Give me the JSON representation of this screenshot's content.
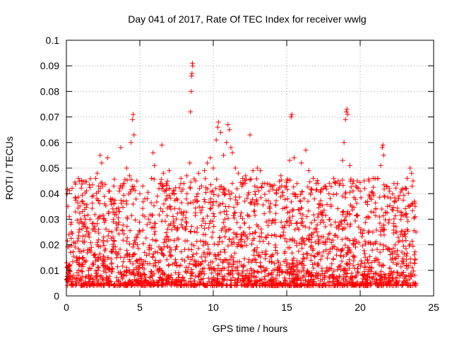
{
  "chart_data": {
    "type": "scatter",
    "title": "Day 041 of 2017, Rate Of TEC Index for receiver wwlg",
    "xlabel": "GPS time / hours",
    "ylabel": "ROTI / TECUs",
    "xlim": [
      0,
      25
    ],
    "ylim": [
      0,
      0.1
    ],
    "xticks": [
      0,
      5,
      10,
      15,
      20,
      25
    ],
    "xtick_labels": [
      "0",
      "5",
      "10",
      "15",
      "20",
      "25"
    ],
    "yticks": [
      0,
      0.01,
      0.02,
      0.03,
      0.04,
      0.05,
      0.06,
      0.07,
      0.08,
      0.09,
      0.1
    ],
    "ytick_labels": [
      "0",
      "0.01",
      "0.02",
      "0.03",
      "0.04",
      "0.05",
      "0.06",
      "0.07",
      "0.08",
      "0.09",
      "0.1"
    ],
    "grid": true,
    "marker": "+",
    "color": "#ff0000",
    "data_x_range": [
      0,
      23.8
    ],
    "series": [
      {
        "name": "ROTI",
        "points": [
          [
            0.05,
            0.04
          ],
          [
            0.1,
            0.035
          ],
          [
            0.2,
            0.031
          ],
          [
            0.3,
            0.028
          ],
          [
            0.35,
            0.025
          ],
          [
            0.5,
            0.021
          ],
          [
            0.7,
            0.015
          ],
          [
            0.9,
            0.012
          ],
          [
            1.1,
            0.033
          ],
          [
            1.2,
            0.036
          ],
          [
            1.3,
            0.03
          ],
          [
            1.5,
            0.024
          ],
          [
            1.7,
            0.019
          ],
          [
            1.9,
            0.016
          ],
          [
            2.0,
            0.046
          ],
          [
            2.1,
            0.048
          ],
          [
            2.2,
            0.043
          ],
          [
            2.3,
            0.055
          ],
          [
            2.4,
            0.052
          ],
          [
            2.6,
            0.036
          ],
          [
            2.8,
            0.054
          ],
          [
            3.0,
            0.038
          ],
          [
            3.2,
            0.029
          ],
          [
            3.4,
            0.034
          ],
          [
            3.6,
            0.041
          ],
          [
            3.7,
            0.058
          ],
          [
            3.9,
            0.044
          ],
          [
            4.1,
            0.05
          ],
          [
            4.3,
            0.047
          ],
          [
            4.4,
            0.06
          ],
          [
            4.5,
            0.069
          ],
          [
            4.55,
            0.071
          ],
          [
            4.6,
            0.063
          ],
          [
            4.8,
            0.045
          ],
          [
            5.0,
            0.04
          ],
          [
            5.2,
            0.043
          ],
          [
            5.5,
            0.038
          ],
          [
            5.8,
            0.046
          ],
          [
            5.9,
            0.056
          ],
          [
            6.0,
            0.051
          ],
          [
            6.3,
            0.042
          ],
          [
            6.5,
            0.059
          ],
          [
            6.6,
            0.048
          ],
          [
            6.8,
            0.044
          ],
          [
            7.0,
            0.049
          ],
          [
            7.3,
            0.041
          ],
          [
            7.5,
            0.038
          ],
          [
            7.8,
            0.046
          ],
          [
            8.0,
            0.044
          ],
          [
            8.2,
            0.047
          ],
          [
            8.4,
            0.052
          ],
          [
            8.45,
            0.072
          ],
          [
            8.5,
            0.08
          ],
          [
            8.52,
            0.086
          ],
          [
            8.55,
            0.087
          ],
          [
            8.58,
            0.091
          ],
          [
            8.6,
            0.09
          ],
          [
            8.8,
            0.045
          ],
          [
            9.0,
            0.048
          ],
          [
            9.2,
            0.043
          ],
          [
            9.4,
            0.049
          ],
          [
            9.6,
            0.052
          ],
          [
            9.8,
            0.054
          ],
          [
            10.0,
            0.05
          ],
          [
            10.2,
            0.061
          ],
          [
            10.3,
            0.066
          ],
          [
            10.35,
            0.068
          ],
          [
            10.5,
            0.064
          ],
          [
            10.7,
            0.055
          ],
          [
            10.9,
            0.06
          ],
          [
            11.0,
            0.067
          ],
          [
            11.1,
            0.065
          ],
          [
            11.2,
            0.058
          ],
          [
            11.3,
            0.056
          ],
          [
            11.5,
            0.05
          ],
          [
            11.7,
            0.048
          ],
          [
            12.0,
            0.046
          ],
          [
            12.2,
            0.047
          ],
          [
            12.5,
            0.063
          ],
          [
            12.7,
            0.049
          ],
          [
            13.0,
            0.05
          ],
          [
            13.2,
            0.049
          ],
          [
            13.5,
            0.044
          ],
          [
            13.8,
            0.041
          ],
          [
            14.0,
            0.043
          ],
          [
            14.3,
            0.04
          ],
          [
            14.6,
            0.047
          ],
          [
            15.0,
            0.045
          ],
          [
            15.2,
            0.053
          ],
          [
            15.3,
            0.07
          ],
          [
            15.35,
            0.071
          ],
          [
            15.5,
            0.054
          ],
          [
            15.7,
            0.044
          ],
          [
            16.0,
            0.052
          ],
          [
            16.3,
            0.057
          ],
          [
            16.5,
            0.049
          ],
          [
            16.8,
            0.046
          ],
          [
            17.0,
            0.044
          ],
          [
            17.3,
            0.041
          ],
          [
            17.6,
            0.043
          ],
          [
            17.9,
            0.044
          ],
          [
            18.2,
            0.046
          ],
          [
            18.5,
            0.045
          ],
          [
            18.8,
            0.053
          ],
          [
            18.9,
            0.06
          ],
          [
            19.0,
            0.069
          ],
          [
            19.05,
            0.072
          ],
          [
            19.1,
            0.073
          ],
          [
            19.15,
            0.071
          ],
          [
            19.3,
            0.051
          ],
          [
            19.5,
            0.044
          ],
          [
            19.8,
            0.045
          ],
          [
            20.0,
            0.041
          ],
          [
            20.3,
            0.042
          ],
          [
            20.6,
            0.045
          ],
          [
            20.9,
            0.04
          ],
          [
            21.2,
            0.046
          ],
          [
            21.4,
            0.051
          ],
          [
            21.5,
            0.058
          ],
          [
            21.55,
            0.059
          ],
          [
            21.6,
            0.055
          ],
          [
            21.8,
            0.043
          ],
          [
            22.0,
            0.041
          ],
          [
            22.3,
            0.044
          ],
          [
            22.6,
            0.038
          ],
          [
            22.9,
            0.042
          ],
          [
            23.2,
            0.046
          ],
          [
            23.4,
            0.05
          ],
          [
            23.5,
            0.048
          ],
          [
            23.6,
            0.045
          ],
          [
            23.7,
            0.037
          ],
          [
            23.75,
            0.031
          ],
          [
            23.8,
            0.025
          ]
        ]
      }
    ]
  }
}
